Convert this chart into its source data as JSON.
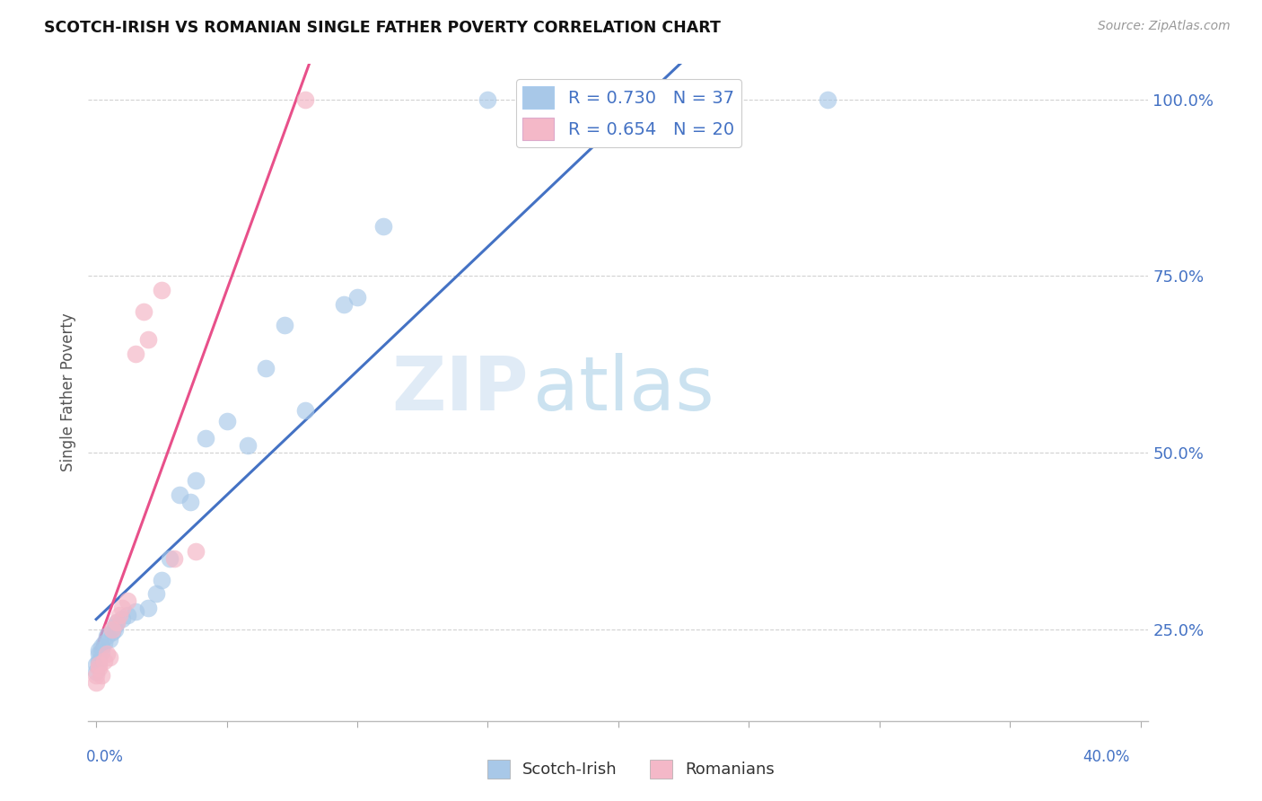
{
  "title": "SCOTCH-IRISH VS ROMANIAN SINGLE FATHER POVERTY CORRELATION CHART",
  "source": "Source: ZipAtlas.com",
  "ylabel": "Single Father Poverty",
  "ytick_labels": [
    "25.0%",
    "50.0%",
    "75.0%",
    "100.0%"
  ],
  "ytick_values": [
    0.25,
    0.5,
    0.75,
    1.0
  ],
  "legend_blue": "R = 0.730   N = 37",
  "legend_pink": "R = 0.654   N = 20",
  "legend_label_blue": "Scotch-Irish",
  "legend_label_pink": "Romanians",
  "blue_scatter_color": "#a8c8e8",
  "pink_scatter_color": "#f4b8c8",
  "blue_line_color": "#4472c4",
  "pink_line_color": "#e8508a",
  "label_color": "#4472c4",
  "watermark_color": "#ccddf5",
  "background": "#ffffff",
  "xlim": [
    0.0,
    0.4
  ],
  "ylim": [
    0.12,
    1.05
  ],
  "scotch_irish_x": [
    0.0,
    0.0,
    0.001,
    0.001,
    0.001,
    0.002,
    0.002,
    0.003,
    0.004,
    0.005,
    0.006,
    0.007,
    0.007,
    0.008,
    0.01,
    0.012,
    0.015,
    0.02,
    0.023,
    0.025,
    0.028,
    0.032,
    0.036,
    0.038,
    0.042,
    0.05,
    0.058,
    0.065,
    0.072,
    0.08,
    0.095,
    0.1,
    0.11,
    0.15,
    0.22,
    0.24,
    0.28
  ],
  "scotch_irish_y": [
    0.19,
    0.2,
    0.205,
    0.215,
    0.22,
    0.218,
    0.225,
    0.23,
    0.24,
    0.235,
    0.245,
    0.25,
    0.255,
    0.26,
    0.265,
    0.27,
    0.275,
    0.28,
    0.3,
    0.32,
    0.35,
    0.44,
    0.43,
    0.46,
    0.52,
    0.545,
    0.51,
    0.62,
    0.68,
    0.56,
    0.71,
    0.72,
    0.82,
    1.0,
    1.0,
    1.0,
    1.0
  ],
  "romanian_x": [
    0.0,
    0.0,
    0.001,
    0.001,
    0.002,
    0.003,
    0.004,
    0.005,
    0.006,
    0.008,
    0.009,
    0.01,
    0.012,
    0.015,
    0.018,
    0.02,
    0.025,
    0.03,
    0.038,
    0.08
  ],
  "romanian_y": [
    0.185,
    0.175,
    0.195,
    0.2,
    0.185,
    0.205,
    0.215,
    0.21,
    0.25,
    0.26,
    0.27,
    0.28,
    0.29,
    0.64,
    0.7,
    0.66,
    0.73,
    0.35,
    0.36,
    1.0
  ],
  "blue_intercept": 0.205,
  "blue_slope": 2.85,
  "pink_intercept": 0.16,
  "pink_slope": 9.0
}
